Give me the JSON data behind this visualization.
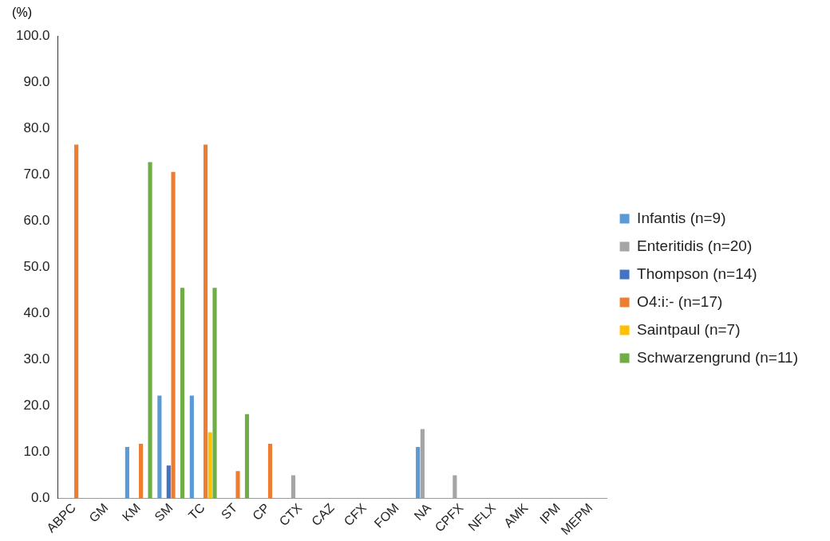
{
  "chart_data": {
    "type": "bar",
    "ylabel": "(%)",
    "categories": [
      "ABPC",
      "GM",
      "KM",
      "SM",
      "TC",
      "ST",
      "CP",
      "CTX",
      "CAZ",
      "CFX",
      "FOM",
      "NA",
      "CPFX",
      "NFLX",
      "AMK",
      "IPM",
      "MEPM"
    ],
    "series": [
      {
        "name": "Infantis (n=9)",
        "color": "#5b9bd5",
        "values": [
          0,
          0,
          11.1,
          22.2,
          22.2,
          0,
          0,
          0,
          0,
          0,
          0,
          11.1,
          0,
          0,
          0,
          0,
          0
        ]
      },
      {
        "name": "Enteritidis (n=20)",
        "color": "#a5a5a5",
        "values": [
          0,
          0,
          0,
          0,
          0,
          0,
          0,
          5.0,
          0,
          0,
          0,
          15.0,
          5.0,
          0,
          0,
          0,
          0
        ]
      },
      {
        "name": "Thompson (n=14)",
        "color": "#4472c4",
        "values": [
          0,
          0,
          0,
          7.1,
          0,
          0,
          0,
          0,
          0,
          0,
          0,
          0,
          0,
          0,
          0,
          0,
          0
        ]
      },
      {
        "name": "O4:i:- (n=17)",
        "color": "#ed7d31",
        "values": [
          76.5,
          0,
          11.8,
          70.6,
          76.5,
          5.9,
          11.8,
          0,
          0,
          0,
          0,
          0,
          0,
          0,
          0,
          0,
          0
        ]
      },
      {
        "name": "Saintpaul (n=7)",
        "color": "#ffc000",
        "values": [
          0,
          0,
          0,
          0,
          14.3,
          0,
          0,
          0,
          0,
          0,
          0,
          0,
          0,
          0,
          0,
          0,
          0
        ]
      },
      {
        "name": "Schwarzengrund (n=11)",
        "color": "#70ad47",
        "values": [
          0,
          0,
          72.7,
          45.5,
          45.5,
          18.2,
          0,
          0,
          0,
          0,
          0,
          0,
          0,
          0,
          0,
          0,
          0
        ]
      }
    ],
    "ylim": [
      0,
      100
    ],
    "yticks": [
      {
        "value": 0,
        "label": "0.0"
      },
      {
        "value": 10,
        "label": "10.0"
      },
      {
        "value": 20,
        "label": "20.0"
      },
      {
        "value": 30,
        "label": "30.0"
      },
      {
        "value": 40,
        "label": "40.0"
      },
      {
        "value": 50,
        "label": "50.0"
      },
      {
        "value": 60,
        "label": "60.0"
      },
      {
        "value": 70,
        "label": "70.0"
      },
      {
        "value": 80,
        "label": "80.0"
      },
      {
        "value": 90,
        "label": "90.0"
      },
      {
        "value": 100,
        "label": "100.0"
      }
    ],
    "grid": false,
    "legend": "right"
  }
}
